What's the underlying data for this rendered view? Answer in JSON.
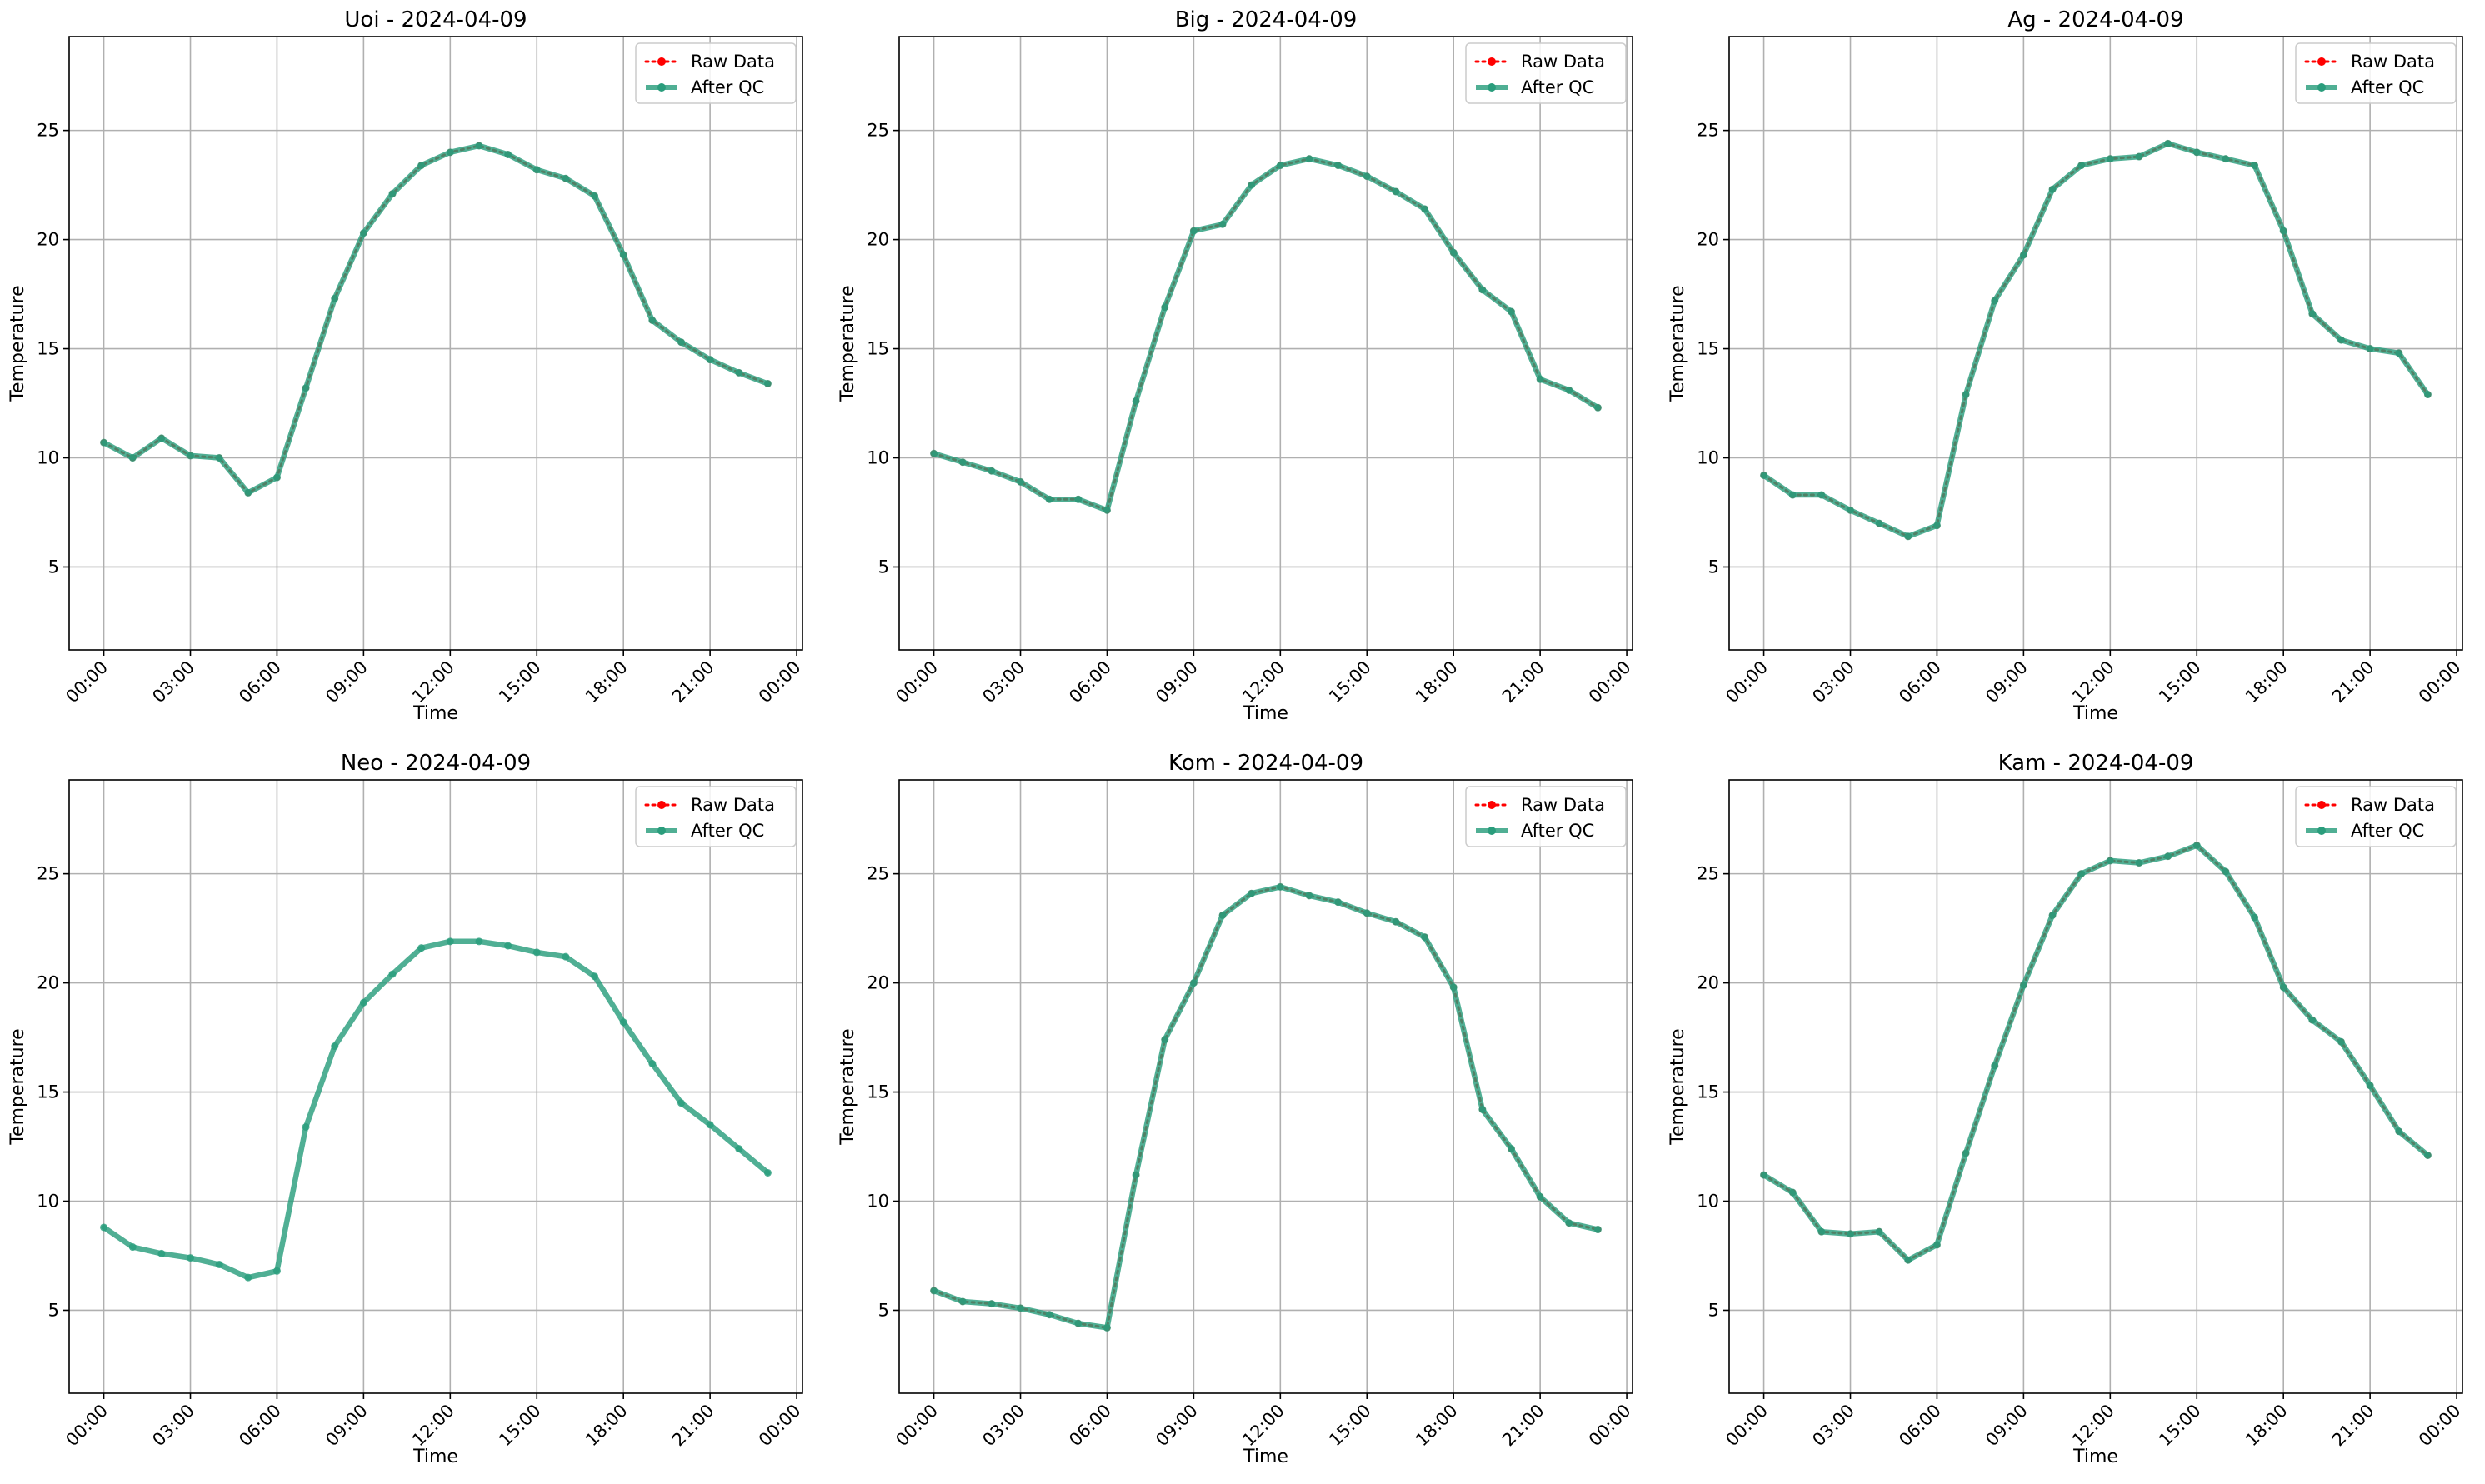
{
  "figure": {
    "legend_labels": {
      "raw": "Raw Data",
      "qc": "After QC"
    },
    "colors": {
      "raw": "#ff0000",
      "qc": "#2a9d7c",
      "grid": "#b0b0b0",
      "axes": "#000000"
    }
  },
  "chart_data": [
    {
      "type": "line",
      "title": "Uoi - 2024-04-09",
      "xlabel": "Time",
      "ylabel": "Temperature",
      "x_unit": "hours",
      "x_tick_labels": [
        "00:00",
        "03:00",
        "06:00",
        "09:00",
        "12:00",
        "15:00",
        "18:00",
        "21:00",
        "00:00"
      ],
      "xlim_hours": [
        -1.2,
        24.2
      ],
      "ylim": [
        1.2,
        29.3
      ],
      "y_ticks": [
        5,
        10,
        15,
        20,
        25
      ],
      "grid": true,
      "legend": "top-right",
      "series": [
        {
          "name": "Raw Data",
          "style": "dotted-red",
          "values": [
            10.7,
            10.0,
            10.9,
            10.1,
            10.0,
            8.4,
            9.1,
            13.2,
            17.3,
            20.3,
            22.1,
            23.4,
            24.0,
            24.3,
            23.9,
            23.2,
            22.8,
            22.0,
            19.3,
            16.3,
            15.3,
            14.5,
            13.9,
            13.4
          ]
        },
        {
          "name": "After QC",
          "style": "solid-green",
          "values": [
            10.7,
            10.0,
            10.9,
            10.1,
            10.0,
            8.4,
            9.1,
            13.2,
            17.3,
            20.3,
            22.1,
            23.4,
            24.0,
            24.3,
            23.9,
            23.2,
            22.8,
            22.0,
            19.3,
            16.3,
            15.3,
            14.5,
            13.9,
            13.4
          ]
        }
      ]
    },
    {
      "type": "line",
      "title": "Big - 2024-04-09",
      "xlabel": "Time",
      "ylabel": "Temperature",
      "x_unit": "hours",
      "x_tick_labels": [
        "00:00",
        "03:00",
        "06:00",
        "09:00",
        "12:00",
        "15:00",
        "18:00",
        "21:00",
        "00:00"
      ],
      "xlim_hours": [
        -1.2,
        24.2
      ],
      "ylim": [
        1.2,
        29.3
      ],
      "y_ticks": [
        5,
        10,
        15,
        20,
        25
      ],
      "grid": true,
      "legend": "top-right",
      "series": [
        {
          "name": "Raw Data",
          "style": "dotted-red",
          "values": [
            10.2,
            9.8,
            9.4,
            8.9,
            8.1,
            8.1,
            7.6,
            12.6,
            16.9,
            20.4,
            20.7,
            22.5,
            23.4,
            23.7,
            23.4,
            22.9,
            22.2,
            21.4,
            19.4,
            17.7,
            16.7,
            13.6,
            13.1,
            12.3
          ]
        },
        {
          "name": "After QC",
          "style": "solid-green",
          "values": [
            10.2,
            9.8,
            9.4,
            8.9,
            8.1,
            8.1,
            7.6,
            12.6,
            16.9,
            20.4,
            20.7,
            22.5,
            23.4,
            23.7,
            23.4,
            22.9,
            22.2,
            21.4,
            19.4,
            17.7,
            16.7,
            13.6,
            13.1,
            12.3
          ]
        }
      ]
    },
    {
      "type": "line",
      "title": "Ag - 2024-04-09",
      "xlabel": "Time",
      "ylabel": "Temperature",
      "x_unit": "hours",
      "x_tick_labels": [
        "00:00",
        "03:00",
        "06:00",
        "09:00",
        "12:00",
        "15:00",
        "18:00",
        "21:00",
        "00:00"
      ],
      "xlim_hours": [
        -1.2,
        24.2
      ],
      "ylim": [
        1.2,
        29.3
      ],
      "y_ticks": [
        5,
        10,
        15,
        20,
        25
      ],
      "grid": true,
      "legend": "top-right",
      "series": [
        {
          "name": "Raw Data",
          "style": "dotted-red",
          "values": [
            9.2,
            8.3,
            8.3,
            7.6,
            7.0,
            6.4,
            6.9,
            12.9,
            17.2,
            19.3,
            22.3,
            23.4,
            23.7,
            23.8,
            24.4,
            24.0,
            23.7,
            23.4,
            20.4,
            16.6,
            15.4,
            15.0,
            14.8,
            12.9
          ]
        },
        {
          "name": "After QC",
          "style": "solid-green",
          "values": [
            9.2,
            8.3,
            8.3,
            7.6,
            7.0,
            6.4,
            6.9,
            12.9,
            17.2,
            19.3,
            22.3,
            23.4,
            23.7,
            23.8,
            24.4,
            24.0,
            23.7,
            23.4,
            20.4,
            16.6,
            15.4,
            15.0,
            14.8,
            12.9
          ]
        }
      ]
    },
    {
      "type": "line",
      "title": "Neo - 2024-04-09",
      "xlabel": "Time",
      "ylabel": "Temperature",
      "x_unit": "hours",
      "x_tick_labels": [
        "00:00",
        "03:00",
        "06:00",
        "09:00",
        "12:00",
        "15:00",
        "18:00",
        "21:00",
        "00:00"
      ],
      "xlim_hours": [
        -1.2,
        24.2
      ],
      "ylim": [
        1.2,
        29.3
      ],
      "y_ticks": [
        5,
        10,
        15,
        20,
        25
      ],
      "grid": true,
      "legend": "top-right",
      "series": [
        {
          "name": "Raw Data",
          "style": "dotted-red",
          "values": []
        },
        {
          "name": "After QC",
          "style": "solid-green",
          "values": [
            8.8,
            7.9,
            7.6,
            7.4,
            7.1,
            6.5,
            6.8,
            13.4,
            17.1,
            19.1,
            20.4,
            21.6,
            21.9,
            21.9,
            21.7,
            21.4,
            21.2,
            20.3,
            18.2,
            16.3,
            14.5,
            13.5,
            12.4,
            11.3
          ]
        }
      ]
    },
    {
      "type": "line",
      "title": "Kom - 2024-04-09",
      "xlabel": "Time",
      "ylabel": "Temperature",
      "x_unit": "hours",
      "x_tick_labels": [
        "00:00",
        "03:00",
        "06:00",
        "09:00",
        "12:00",
        "15:00",
        "18:00",
        "21:00",
        "00:00"
      ],
      "xlim_hours": [
        -1.2,
        24.2
      ],
      "ylim": [
        1.2,
        29.3
      ],
      "y_ticks": [
        5,
        10,
        15,
        20,
        25
      ],
      "grid": true,
      "legend": "top-right",
      "series": [
        {
          "name": "Raw Data",
          "style": "dotted-red",
          "values": [
            5.9,
            5.4,
            5.3,
            5.1,
            4.8,
            4.4,
            4.2,
            11.2,
            17.4,
            20.0,
            23.1,
            24.1,
            24.4,
            24.0,
            23.7,
            23.2,
            22.8,
            22.1,
            19.8,
            14.2,
            12.4,
            10.2,
            9.0,
            8.7
          ]
        },
        {
          "name": "After QC",
          "style": "solid-green",
          "values": [
            5.9,
            5.4,
            5.3,
            5.1,
            4.8,
            4.4,
            4.2,
            11.2,
            17.4,
            20.0,
            23.1,
            24.1,
            24.4,
            24.0,
            23.7,
            23.2,
            22.8,
            22.1,
            19.8,
            14.2,
            12.4,
            10.2,
            9.0,
            8.7
          ]
        }
      ]
    },
    {
      "type": "line",
      "title": "Kam - 2024-04-09",
      "xlabel": "Time",
      "ylabel": "Temperature",
      "x_unit": "hours",
      "x_tick_labels": [
        "00:00",
        "03:00",
        "06:00",
        "09:00",
        "12:00",
        "15:00",
        "18:00",
        "21:00",
        "00:00"
      ],
      "xlim_hours": [
        -1.2,
        24.2
      ],
      "ylim": [
        1.2,
        29.3
      ],
      "y_ticks": [
        5,
        10,
        15,
        20,
        25
      ],
      "grid": true,
      "legend": "top-right",
      "series": [
        {
          "name": "Raw Data",
          "style": "dotted-red",
          "values": [
            11.2,
            10.4,
            8.6,
            8.5,
            8.6,
            7.3,
            8.0,
            12.2,
            16.2,
            19.9,
            23.1,
            25.0,
            25.6,
            25.5,
            25.8,
            26.3,
            25.1,
            23.0,
            19.8,
            18.3,
            17.3,
            15.3,
            13.2,
            12.1
          ]
        },
        {
          "name": "After QC",
          "style": "solid-green",
          "values": [
            11.2,
            10.4,
            8.6,
            8.5,
            8.6,
            7.3,
            8.0,
            12.2,
            16.2,
            19.9,
            23.1,
            25.0,
            25.6,
            25.5,
            25.8,
            26.3,
            25.1,
            23.0,
            19.8,
            18.3,
            17.3,
            15.3,
            13.2,
            12.1
          ]
        }
      ]
    }
  ]
}
